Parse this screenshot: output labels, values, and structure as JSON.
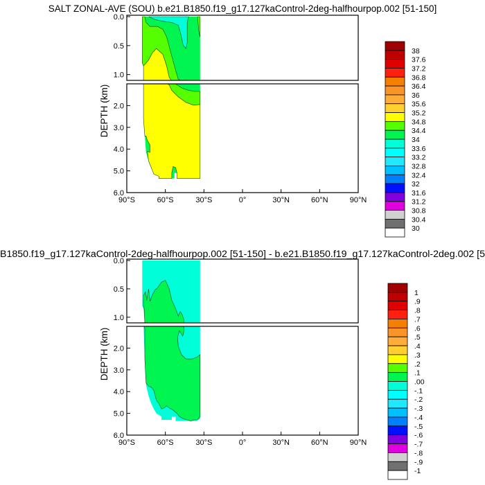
{
  "chart_data": [
    {
      "type": "heatmap",
      "subtype": "filled-contour",
      "title": "SALT ZONAL-AVE (SOU) b.e21.B1850.f19_g17.127kaControl-2deg-halfhourpop.002 [51-150]",
      "ylabel": "DEPTH (km)",
      "xlabel": "",
      "xlim": [
        -90,
        90
      ],
      "ylim_upper": [
        0,
        1.1
      ],
      "ylim_lower": [
        1.0,
        6.0
      ],
      "x_ticks": [
        -90,
        -60,
        -30,
        0,
        30,
        60,
        90
      ],
      "x_tick_labels": [
        "90°S",
        "60°S",
        "30°S",
        "0°",
        "30°N",
        "60°N",
        "90°N"
      ],
      "y_ticks_upper": [
        0,
        0.5,
        1.0
      ],
      "y_tick_labels_upper": [
        "0.0",
        "0.5",
        "1.0"
      ],
      "y_ticks_lower": [
        2,
        3,
        4,
        5,
        6
      ],
      "y_tick_labels_lower": [
        "2.0",
        "3.0",
        "4.0",
        "5.0",
        "6.0"
      ],
      "colorbar_labels": [
        "38",
        "37.6",
        "37.2",
        "36.8",
        "36.4",
        "36",
        "35.6",
        "35.2",
        "34.8",
        "34.4",
        "34",
        "33.6",
        "33.2",
        "32.8",
        "32.4",
        "32",
        "31.6",
        "31.2",
        "30.8",
        "30.4",
        "30"
      ],
      "regions": [
        {
          "level": "34-34.4",
          "color": "#00f550",
          "points": [
            [
              -78,
              0
            ],
            [
              -33,
              0
            ],
            [
              -33,
              5.35
            ],
            [
              -51,
              5.35
            ],
            [
              -51,
              5.1
            ],
            [
              -53,
              5.1
            ],
            [
              -53,
              5.35
            ],
            [
              -65,
              5.35
            ],
            [
              -65,
              5.25
            ],
            [
              -69,
              5.15
            ],
            [
              -71,
              4.85
            ],
            [
              -73,
              4.55
            ],
            [
              -75,
              4.15
            ],
            [
              -76,
              3.4
            ],
            [
              -77,
              2.6
            ],
            [
              -77,
              0.85
            ],
            [
              -78,
              0.8
            ]
          ]
        },
        {
          "level": "33.6-34",
          "color": "#00ffd8",
          "points": [
            [
              -73,
              0
            ],
            [
              -42,
              0
            ],
            [
              -43,
              0.1
            ],
            [
              -43,
              0.45
            ],
            [
              -44,
              0.55
            ],
            [
              -46,
              0.5
            ],
            [
              -48,
              0.3
            ],
            [
              -50,
              0.15
            ],
            [
              -55,
              0.1
            ],
            [
              -62,
              0.08
            ],
            [
              -68,
              0.05
            ]
          ]
        },
        {
          "level": "34.4-34.8",
          "color": "#55ff00",
          "points": [
            [
              -78,
              0
            ],
            [
              -76,
              0
            ],
            [
              -75,
              0.1
            ],
            [
              -72,
              0.17
            ],
            [
              -66,
              0.17
            ],
            [
              -62,
              0.22
            ],
            [
              -59,
              0.35
            ],
            [
              -56,
              0.6
            ],
            [
              -53,
              0.85
            ],
            [
              -50,
              1.08
            ],
            [
              -47,
              1.2
            ],
            [
              -42,
              1.3
            ],
            [
              -37,
              1.35
            ],
            [
              -33,
              1.35
            ],
            [
              -33,
              1.95
            ],
            [
              -38,
              1.98
            ],
            [
              -44,
              1.85
            ],
            [
              -50,
              1.6
            ],
            [
              -55,
              1.3
            ],
            [
              -57,
              1.05
            ],
            [
              -59,
              0.85
            ],
            [
              -62,
              0.65
            ],
            [
              -67,
              0.55
            ],
            [
              -70,
              0.62
            ],
            [
              -73,
              0.75
            ],
            [
              -77,
              0.85
            ],
            [
              -78,
              0.8
            ]
          ]
        },
        {
          "level": "34.4-34.8",
          "color": "#55ff00",
          "points": [
            [
              -35,
              0
            ],
            [
              -33,
              0
            ],
            [
              -33,
              0.35
            ],
            [
              -34,
              0.25
            ]
          ]
        },
        {
          "level": "34.8-35.2",
          "color": "#ffff00",
          "points": [
            [
              -77,
              0.85
            ],
            [
              -73,
              0.75
            ],
            [
              -70,
              0.62
            ],
            [
              -67,
              0.55
            ],
            [
              -62,
              0.65
            ],
            [
              -59,
              0.85
            ],
            [
              -57,
              1.05
            ],
            [
              -55,
              1.3
            ],
            [
              -50,
              1.6
            ],
            [
              -44,
              1.85
            ],
            [
              -38,
              1.98
            ],
            [
              -33,
              1.95
            ],
            [
              -33,
              5.35
            ],
            [
              -51,
              5.35
            ],
            [
              -51,
              5.1
            ],
            [
              -52,
              4.85
            ],
            [
              -54,
              4.8
            ],
            [
              -55,
              5.1
            ],
            [
              -55,
              5.35
            ],
            [
              -65,
              5.35
            ],
            [
              -65,
              5.25
            ],
            [
              -69,
              5.15
            ],
            [
              -71,
              4.85
            ],
            [
              -73,
              4.55
            ],
            [
              -74,
              4.1
            ],
            [
              -72,
              4.15
            ],
            [
              -72,
              3.8
            ],
            [
              -74,
              3.6
            ],
            [
              -75,
              3.4
            ],
            [
              -76,
              3.4
            ],
            [
              -77,
              2.6
            ]
          ]
        }
      ]
    },
    {
      "type": "heatmap",
      "subtype": "filled-contour",
      "title": "B1850.f19_g17.127kaControl-2deg-halfhourpop.002 [51-150] - b.e21.B1850.f19_g17.127kaControl-2deg.002 [5",
      "ylabel": "DEPTH (km)",
      "xlabel": "",
      "xlim": [
        -90,
        90
      ],
      "ylim_upper": [
        0,
        1.1
      ],
      "ylim_lower": [
        1.0,
        6.0
      ],
      "x_ticks": [
        -90,
        -60,
        -30,
        0,
        30,
        60,
        90
      ],
      "x_tick_labels": [
        "90°S",
        "60°S",
        "30°S",
        "0°",
        "30°N",
        "60°N",
        "90°N"
      ],
      "y_ticks_upper": [
        0,
        0.5,
        1.0
      ],
      "y_tick_labels_upper": [
        "0.0",
        "0.5",
        "1.0"
      ],
      "y_ticks_lower": [
        2,
        3,
        4,
        5,
        6
      ],
      "y_tick_labels_lower": [
        "2.0",
        "3.0",
        "4.0",
        "5.0",
        "6.0"
      ],
      "colorbar_labels": [
        "1",
        ".9",
        ".8",
        ".7",
        ".6",
        ".5",
        ".4",
        ".3",
        ".2",
        ".1",
        ".00",
        "-.1",
        "-.2",
        "-.3",
        "-.4",
        "-.5",
        "-.6",
        "-.7",
        "-.8",
        "-.9",
        "-1"
      ],
      "regions": [
        {
          "level": "-0.1-0",
          "color": "#00ffd8",
          "points": [
            [
              -78,
              0
            ],
            [
              -33,
              0
            ],
            [
              -33,
              5.25
            ],
            [
              -36,
              5.35
            ],
            [
              -52,
              5.35
            ],
            [
              -52,
              5.15
            ],
            [
              -55,
              5.15
            ],
            [
              -55,
              5.3
            ],
            [
              -63,
              5.3
            ],
            [
              -63,
              5.15
            ],
            [
              -67,
              5.0
            ],
            [
              -69,
              4.8
            ],
            [
              -71,
              4.55
            ],
            [
              -73,
              4.2
            ],
            [
              -75,
              3.7
            ],
            [
              -76,
              2.5
            ],
            [
              -77,
              0.85
            ],
            [
              -78,
              0.8
            ]
          ]
        },
        {
          "level": "0-0.1",
          "color": "#00f550",
          "points": [
            [
              -77,
              0.8
            ],
            [
              -77,
              0.62
            ],
            [
              -75.5,
              0.55
            ],
            [
              -74.5,
              0.7
            ],
            [
              -73,
              0.5
            ],
            [
              -72,
              0.72
            ],
            [
              -70,
              0.6
            ],
            [
              -68,
              0.52
            ],
            [
              -66,
              0.48
            ],
            [
              -63,
              0.38
            ],
            [
              -60,
              0.35
            ],
            [
              -57,
              0.5
            ],
            [
              -55,
              0.7
            ],
            [
              -52,
              0.85
            ],
            [
              -50,
              0.98
            ],
            [
              -48.5,
              0.9
            ],
            [
              -47,
              0.95
            ],
            [
              -45.5,
              1.05
            ],
            [
              -45.5,
              1.2
            ],
            [
              -46.5,
              1.45
            ],
            [
              -48,
              1.3
            ],
            [
              -49,
              1.2
            ],
            [
              -50.5,
              1.5
            ],
            [
              -50,
              1.9
            ],
            [
              -47.5,
              2.3
            ],
            [
              -44,
              2.5
            ],
            [
              -39,
              2.5
            ],
            [
              -35,
              2.4
            ],
            [
              -33,
              2.3
            ],
            [
              -33,
              5.15
            ],
            [
              -35,
              5.3
            ],
            [
              -38,
              5.3
            ],
            [
              -40,
              5.35
            ],
            [
              -43,
              5.3
            ],
            [
              -46,
              5.25
            ],
            [
              -49,
              5.15
            ],
            [
              -51,
              5.0
            ],
            [
              -54,
              4.85
            ],
            [
              -57,
              4.75
            ],
            [
              -59,
              4.65
            ],
            [
              -61,
              4.75
            ],
            [
              -63,
              4.8
            ],
            [
              -65,
              4.55
            ],
            [
              -67,
              4.4
            ],
            [
              -69,
              3.95
            ],
            [
              -71,
              3.8
            ],
            [
              -73,
              3.75
            ],
            [
              -75,
              3.6
            ],
            [
              -76,
              2.5
            ],
            [
              -76,
              1.1
            ],
            [
              -76.5,
              0.85
            ]
          ]
        }
      ]
    }
  ],
  "colorbar_colors": [
    "#a00000",
    "#c00000",
    "#e00000",
    "#ff2010",
    "#f58000",
    "#fa9428",
    "#ffac38",
    "#ffd030",
    "#ffff00",
    "#55ff00",
    "#00f550",
    "#00ffd8",
    "#00ffff",
    "#20e8ff",
    "#00c0ff",
    "#0080ff",
    "#0010ff",
    "#8000e0",
    "#e000e0",
    "#d0d0d0",
    "#707070",
    "#ffffff"
  ]
}
